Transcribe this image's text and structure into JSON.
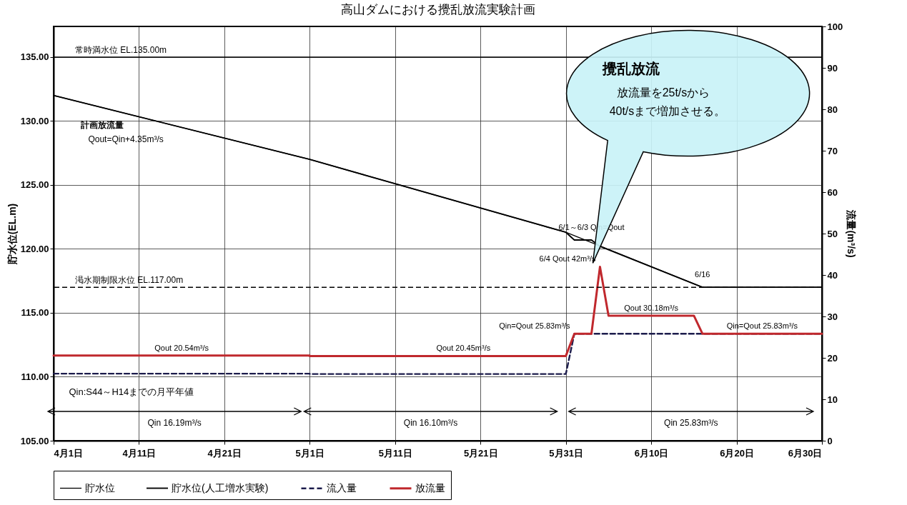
{
  "chart_data": {
    "type": "line",
    "title": "高山ダムにおける攪乱放流実験計画",
    "ylabel": "貯水位(EL.m)",
    "y2label": "流量(m³/s)",
    "xlim": [
      "--04-01",
      "--06-30"
    ],
    "xticks": [
      {
        "value": "--04-01",
        "label": "4月1日"
      },
      {
        "value": "--04-11",
        "label": "4月11日"
      },
      {
        "value": "--04-21",
        "label": "4月21日"
      },
      {
        "value": "--05-01",
        "label": "5月1日"
      },
      {
        "value": "--05-11",
        "label": "5月11日"
      },
      {
        "value": "--05-21",
        "label": "5月21日"
      },
      {
        "value": "--05-31",
        "label": "5月31日"
      },
      {
        "value": "--06-10",
        "label": "6月10日"
      },
      {
        "value": "--06-20",
        "label": "6月20日"
      },
      {
        "value": "--06-30",
        "label": "6月30日"
      }
    ],
    "ylim": [
      105,
      137.4
    ],
    "yticks": [
      {
        "value": 105,
        "label": "105.00"
      },
      {
        "value": 110,
        "label": "110.00"
      },
      {
        "value": 115,
        "label": "115.00"
      },
      {
        "value": 120,
        "label": "120.00"
      },
      {
        "value": 125,
        "label": "125.00"
      },
      {
        "value": 130,
        "label": "130.00"
      },
      {
        "value": 135,
        "label": "135.00"
      }
    ],
    "y2lim": [
      0,
      100
    ],
    "y2ticks": [
      0,
      10,
      20,
      30,
      40,
      50,
      60,
      70,
      80,
      90,
      100
    ],
    "grid": true,
    "legend": "bottom",
    "series": [
      {
        "name": "貯水位",
        "color": "#000000",
        "x": [
          "--04-01",
          "--05-01",
          "--05-31",
          "--06-16",
          "--06-30"
        ],
        "values": [
          132.0,
          127.0,
          121.3,
          117.0,
          117.0
        ]
      },
      {
        "name": "貯水位(人工増水実験)",
        "color": "#000000",
        "x": [
          "--04-01",
          "--05-01",
          "--05-31",
          "--06-01",
          "--06-03",
          "--06-04",
          "--06-16",
          "--06-30"
        ],
        "values": [
          132.0,
          127.0,
          121.3,
          120.7,
          120.7,
          120.2,
          117.0,
          117.0
        ]
      },
      {
        "name": "流入量",
        "color": "#1c1c4c",
        "axis": "y2",
        "line_style": "dashed",
        "x": [
          "--04-01",
          "--05-01",
          "--05-01",
          "--05-31",
          "--06-01",
          "--06-30"
        ],
        "values": [
          16.19,
          16.19,
          16.1,
          16.1,
          25.83,
          25.83
        ]
      },
      {
        "name": "放流量",
        "color": "#c0282d",
        "axis": "y2",
        "x": [
          "--04-01",
          "--04-16",
          "--05-01",
          "--05-01",
          "--05-19",
          "--05-31",
          "--06-01",
          "--06-03",
          "--06-04",
          "--06-05",
          "--06-10",
          "--06-15",
          "--06-16",
          "--06-23",
          "--06-30"
        ],
        "values": [
          20.54,
          20.54,
          20.54,
          20.45,
          20.45,
          20.45,
          25.83,
          25.83,
          42,
          30.18,
          30.18,
          30.18,
          25.83,
          25.83,
          25.83
        ],
        "value_labels": [
          null,
          "Qout 20.54m³/s",
          null,
          null,
          "Qout 20.45m³/s",
          null,
          "Qin=Qout 25.83m³/s",
          null,
          "6/4 Qout 42m³/s",
          null,
          "Qout 30.18m³/s",
          null,
          null,
          "Qin=Qout 25.83m³/s",
          null
        ]
      }
    ],
    "ref_lines": [
      {
        "axis": "y",
        "value": 135,
        "label": "常時満水位 EL.135.00m",
        "color": "#000000"
      },
      {
        "axis": "y",
        "value": 117,
        "label": "渇水期制限水位 EL.117.00m",
        "color": "#000000",
        "line_style": "dashed"
      }
    ],
    "annotations": [
      "計画放流量",
      "Qout=Qin+4.35m³/s",
      "Qin:S44～H14までの月平年値",
      "攪乱放流",
      "放流量を25t/sから",
      "40t/sまで増加させる。",
      {
        "text": "6/1～6/3 Qin=Qout",
        "x": "--06-03",
        "y": 120.7
      },
      {
        "text": "6/16",
        "x": "--06-16",
        "y": 117
      },
      "Qin 16.19m³/s",
      "Qin 16.10m³/s",
      "Qin 25.83m³/s"
    ]
  }
}
